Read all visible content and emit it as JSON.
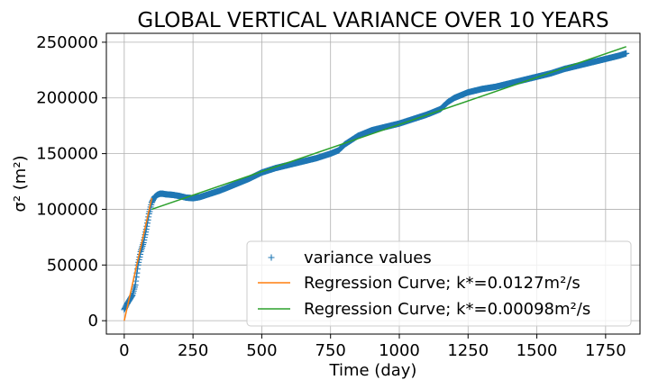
{
  "chart_data": {
    "type": "scatter",
    "title": "GLOBAL VERTICAL VARIANCE OVER 10 YEARS",
    "xlabel": "Time (day)",
    "ylabel": "σ² (m²)",
    "xlim": [
      -65,
      1875
    ],
    "ylim": [
      -12000,
      258000
    ],
    "xticks": [
      0,
      250,
      500,
      750,
      1000,
      1250,
      1500,
      1750
    ],
    "yticks": [
      0,
      50000,
      100000,
      150000,
      200000,
      250000
    ],
    "xtick_labels": [
      "0",
      "250",
      "500",
      "750",
      "1000",
      "1250",
      "1500",
      "1750"
    ],
    "ytick_labels": [
      "0",
      "50000",
      "100000",
      "150000",
      "200000",
      "250000"
    ],
    "grid": true,
    "legend_position": "lower-right",
    "series": [
      {
        "name": "variance values",
        "kind": "marker",
        "marker": "+",
        "color": "#1f77b4",
        "x": [
          0,
          10,
          20,
          30,
          40,
          50,
          60,
          70,
          80,
          90,
          100,
          110,
          120,
          130,
          140,
          150,
          175,
          200,
          225,
          250,
          275,
          300,
          350,
          400,
          450,
          500,
          550,
          600,
          650,
          700,
          750,
          780,
          800,
          850,
          900,
          950,
          1000,
          1050,
          1100,
          1150,
          1175,
          1200,
          1250,
          1300,
          1350,
          1400,
          1450,
          1500,
          1550,
          1600,
          1650,
          1700,
          1750,
          1800,
          1825
        ],
        "y": [
          10000,
          15000,
          19000,
          23000,
          32000,
          50000,
          62000,
          70000,
          82000,
          96000,
          106000,
          111000,
          113000,
          114000,
          114000,
          113500,
          113000,
          112000,
          110500,
          110000,
          111000,
          113000,
          117000,
          122000,
          127000,
          133000,
          137000,
          140000,
          143000,
          146000,
          150000,
          153000,
          158000,
          166000,
          171000,
          174000,
          177000,
          181000,
          185000,
          190000,
          196000,
          200000,
          205000,
          208000,
          210000,
          213000,
          216000,
          219000,
          222000,
          226000,
          229000,
          232000,
          235000,
          238000,
          240000
        ]
      },
      {
        "name": "Regression Curve; k*=0.0127m²/s",
        "kind": "line",
        "color": "#ff7f0e",
        "x": [
          0,
          100
        ],
        "y": [
          0,
          110000
        ]
      },
      {
        "name": "Regression Curve; k*=0.00098m²/s",
        "kind": "line",
        "color": "#2ca02c",
        "x": [
          100,
          1825
        ],
        "y": [
          100000,
          246000
        ]
      }
    ]
  }
}
